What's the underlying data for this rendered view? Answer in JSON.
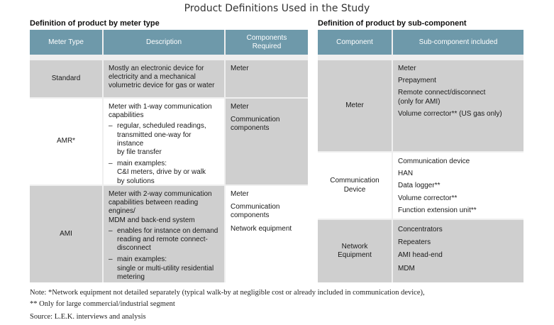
{
  "title": "Product Definitions Used in the Study",
  "left": {
    "subhead": "Definition of product by meter type",
    "headers": [
      "Meter Type",
      "Description",
      "Components Required"
    ],
    "rows": [
      {
        "type": "Standard",
        "description": [
          "Mostly an electronic device for",
          "electricity and a mechanical",
          "volumetric device for gas or water"
        ],
        "components": [
          "Meter"
        ]
      },
      {
        "type": "AMR*",
        "description": [
          "Meter with 1-way communication",
          "capabilities"
        ],
        "bullets": [
          [
            "regular, scheduled readings,",
            "transmitted one-way for instance",
            "by file transfer"
          ],
          [
            "main examples:",
            "C&I meters, drive by or walk",
            "by solutions"
          ]
        ],
        "components": [
          "Meter",
          "Communication",
          "components"
        ]
      },
      {
        "type": "AMI",
        "description": [
          "Meter with 2-way communication",
          "capabilities between reading engines/",
          "MDM and back-end system"
        ],
        "bullets": [
          [
            "enables for instance on demand",
            "reading and remote connect-",
            "disconnect"
          ],
          [
            "main examples:",
            "single or multi-utility residential",
            "metering"
          ]
        ],
        "components": [
          "Meter",
          "Communication",
          "components",
          "Network equipment"
        ]
      }
    ]
  },
  "right": {
    "subhead": "Definition of product by sub-component",
    "headers": [
      "Component",
      "Sub-component included"
    ],
    "rows": [
      {
        "component": [
          "Meter"
        ],
        "subs": [
          "Meter",
          "Prepayment",
          "Remote connect/disconnect",
          "(only for AMI)",
          "Volume corrector** (US gas only)"
        ]
      },
      {
        "component": [
          "Communication",
          "Device"
        ],
        "subs": [
          "Communication device",
          "HAN",
          "Data logger**",
          "Volume corrector**",
          "Function extension unit**"
        ]
      },
      {
        "component": [
          "Network",
          "Equipment"
        ],
        "subs": [
          "Concentrators",
          "Repeaters",
          "AMI head-end",
          "MDM"
        ]
      }
    ]
  },
  "notes": [
    "Note: *Network equipment not detailed separately (typical walk-by at negligible cost or already included in communication device),",
    "** Only for large commercial/industrial segment",
    "Source:  L.E.K. interviews and analysis"
  ]
}
